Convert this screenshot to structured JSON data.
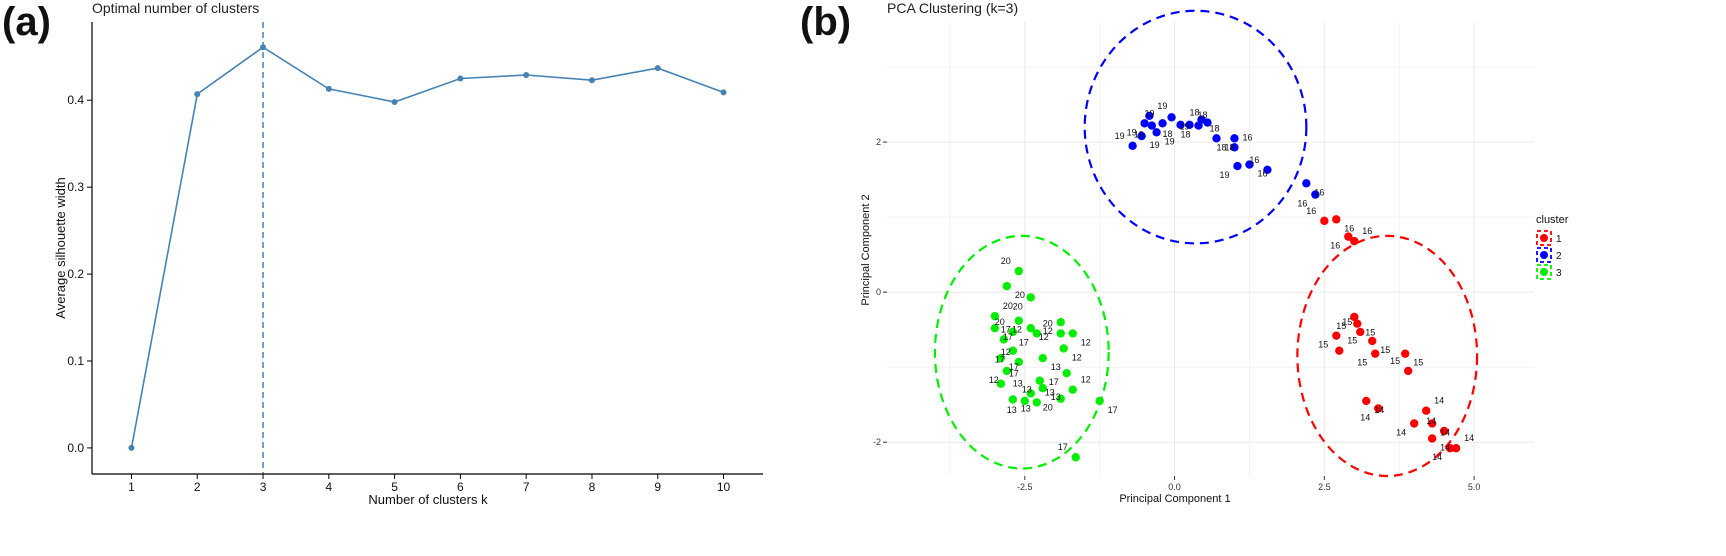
{
  "panels": {
    "a": "(a)",
    "b": "(b)"
  },
  "chart_data": [
    {
      "type": "line",
      "title": "Optimal number of clusters",
      "xlabel": "Number of clusters k",
      "ylabel": "Average silhouette width",
      "x": [
        1,
        2,
        3,
        4,
        5,
        6,
        7,
        8,
        9,
        10
      ],
      "values": [
        0.0,
        0.407,
        0.461,
        0.413,
        0.398,
        0.425,
        0.429,
        0.423,
        0.437,
        0.409
      ],
      "xticks": [
        "1",
        "2",
        "3",
        "4",
        "5",
        "6",
        "7",
        "8",
        "9",
        "10"
      ],
      "yticks": [
        "0.0",
        "0.1",
        "0.2",
        "0.3",
        "0.4"
      ],
      "ylim": [
        -0.03,
        0.49
      ],
      "optimal_k": 3,
      "line_color": "#4682b4",
      "grid": false
    },
    {
      "type": "scatter",
      "title": "PCA Clustering (k=3)",
      "xlabel": "Principal Component 1",
      "ylabel": "Principal Component 2",
      "xlim": [
        -4.8,
        6.0
      ],
      "ylim": [
        -2.45,
        3.6
      ],
      "xticks": [
        "-2.5",
        "0.0",
        "2.5",
        "5.0"
      ],
      "yticks": [
        "-2",
        "0",
        "2"
      ],
      "grid": true,
      "legend": {
        "title": "cluster",
        "position": "right",
        "entries": [
          {
            "label": "1",
            "color": "#ff0000"
          },
          {
            "label": "2",
            "color": "#0000ff"
          },
          {
            "label": "3",
            "color": "#00ee00"
          }
        ]
      },
      "ellipses": [
        {
          "cluster": "1",
          "center": [
            3.55,
            -0.85
          ],
          "radius": [
            1.5,
            1.6
          ],
          "color": "#ff0000"
        },
        {
          "cluster": "2",
          "center": [
            0.35,
            2.2
          ],
          "radius": [
            1.85,
            1.55
          ],
          "color": "#0000ff"
        },
        {
          "cluster": "3",
          "center": [
            -2.55,
            -0.8
          ],
          "radius": [
            1.45,
            1.55
          ],
          "color": "#00ee00"
        }
      ],
      "series": [
        {
          "name": "1",
          "color": "#ff0000",
          "points": [
            {
              "x": 2.5,
              "y": 0.95,
              "label": "16"
            },
            {
              "x": 2.7,
              "y": 0.97,
              "label": "16"
            },
            {
              "x": 2.9,
              "y": 0.74,
              "label": "16"
            },
            {
              "x": 3.0,
              "y": 0.68,
              "label": "16"
            },
            {
              "x": 3.0,
              "y": -0.33,
              "label": "15"
            },
            {
              "x": 3.05,
              "y": -0.42,
              "label": "15"
            },
            {
              "x": 3.1,
              "y": -0.53,
              "label": "15"
            },
            {
              "x": 3.3,
              "y": -0.65,
              "label": "15"
            },
            {
              "x": 2.7,
              "y": -0.58,
              "label": "15"
            },
            {
              "x": 2.75,
              "y": -0.78,
              "label": "15"
            },
            {
              "x": 3.35,
              "y": -0.82,
              "label": "15"
            },
            {
              "x": 3.85,
              "y": -0.82,
              "label": "15"
            },
            {
              "x": 3.9,
              "y": -1.05,
              "label": "15"
            },
            {
              "x": 3.2,
              "y": -1.45,
              "label": "14"
            },
            {
              "x": 3.4,
              "y": -1.55,
              "label": "14"
            },
            {
              "x": 4.2,
              "y": -1.58,
              "label": "14"
            },
            {
              "x": 4.0,
              "y": -1.75,
              "label": "14"
            },
            {
              "x": 4.3,
              "y": -1.75,
              "label": "14"
            },
            {
              "x": 4.5,
              "y": -1.85,
              "label": "14"
            },
            {
              "x": 4.3,
              "y": -1.95,
              "label": "14"
            },
            {
              "x": 4.6,
              "y": -2.08,
              "label": "14"
            },
            {
              "x": 4.7,
              "y": -2.08,
              "label": "14"
            }
          ]
        },
        {
          "name": "2",
          "color": "#0000ff",
          "points": [
            {
              "x": -0.7,
              "y": 1.95,
              "label": "19"
            },
            {
              "x": -0.55,
              "y": 2.08,
              "label": "19"
            },
            {
              "x": -0.5,
              "y": 2.25,
              "label": "19"
            },
            {
              "x": -0.42,
              "y": 2.35,
              "label": "19"
            },
            {
              "x": -0.38,
              "y": 2.22,
              "label": "19"
            },
            {
              "x": -0.3,
              "y": 2.13,
              "label": "19"
            },
            {
              "x": -0.2,
              "y": 2.25,
              "label": "19"
            },
            {
              "x": -0.05,
              "y": 2.33,
              "label": "19"
            },
            {
              "x": 0.1,
              "y": 2.23,
              "label": "18"
            },
            {
              "x": 0.25,
              "y": 2.23,
              "label": "18"
            },
            {
              "x": 0.4,
              "y": 2.22,
              "label": "18"
            },
            {
              "x": 0.45,
              "y": 2.3,
              "label": "18"
            },
            {
              "x": 0.55,
              "y": 2.26,
              "label": "18"
            },
            {
              "x": 0.7,
              "y": 2.05,
              "label": "18"
            },
            {
              "x": 1.0,
              "y": 2.05,
              "label": "18"
            },
            {
              "x": 1.0,
              "y": 1.93,
              "label": "16"
            },
            {
              "x": 1.05,
              "y": 1.68,
              "label": "19"
            },
            {
              "x": 1.25,
              "y": 1.7,
              "label": "16"
            },
            {
              "x": 1.55,
              "y": 1.63,
              "label": "16"
            },
            {
              "x": 2.2,
              "y": 1.45,
              "label": "16"
            },
            {
              "x": 2.35,
              "y": 1.3,
              "label": "16"
            }
          ]
        },
        {
          "name": "3",
          "color": "#00ee00",
          "points": [
            {
              "x": -2.6,
              "y": 0.28,
              "label": "20"
            },
            {
              "x": -2.8,
              "y": 0.08,
              "label": "20"
            },
            {
              "x": -2.4,
              "y": -0.07,
              "label": "20"
            },
            {
              "x": -3.0,
              "y": -0.32,
              "label": "20"
            },
            {
              "x": -2.6,
              "y": -0.38,
              "label": "17"
            },
            {
              "x": -3.0,
              "y": -0.48,
              "label": "17"
            },
            {
              "x": -2.7,
              "y": -0.53,
              "label": "20"
            },
            {
              "x": -2.4,
              "y": -0.48,
              "label": "12"
            },
            {
              "x": -2.3,
              "y": -0.55,
              "label": "17"
            },
            {
              "x": -2.85,
              "y": -0.63,
              "label": "12"
            },
            {
              "x": -2.7,
              "y": -0.78,
              "label": "17"
            },
            {
              "x": -2.9,
              "y": -0.88,
              "label": "17"
            },
            {
              "x": -2.6,
              "y": -0.93,
              "label": "12"
            },
            {
              "x": -2.2,
              "y": -0.88,
              "label": "13"
            },
            {
              "x": -2.8,
              "y": -1.05,
              "label": "12"
            },
            {
              "x": -2.9,
              "y": -1.22,
              "label": "17"
            },
            {
              "x": -2.25,
              "y": -1.18,
              "label": "13"
            },
            {
              "x": -2.2,
              "y": -1.28,
              "label": "13"
            },
            {
              "x": -2.4,
              "y": -1.35,
              "label": "13"
            },
            {
              "x": -2.7,
              "y": -1.43,
              "label": "13"
            },
            {
              "x": -2.5,
              "y": -1.45,
              "label": "13"
            },
            {
              "x": -2.3,
              "y": -1.47,
              "label": "13"
            },
            {
              "x": -1.9,
              "y": -0.4,
              "label": "12"
            },
            {
              "x": -1.7,
              "y": -0.55,
              "label": "12"
            },
            {
              "x": -1.9,
              "y": -0.55,
              "label": "20"
            },
            {
              "x": -1.85,
              "y": -0.75,
              "label": "12"
            },
            {
              "x": -1.8,
              "y": -1.08,
              "label": "17"
            },
            {
              "x": -1.7,
              "y": -1.3,
              "label": "12"
            },
            {
              "x": -1.9,
              "y": -1.42,
              "label": "20"
            },
            {
              "x": -1.25,
              "y": -1.45,
              "label": "17"
            },
            {
              "x": -1.65,
              "y": -2.2,
              "label": "17"
            }
          ]
        }
      ]
    }
  ]
}
